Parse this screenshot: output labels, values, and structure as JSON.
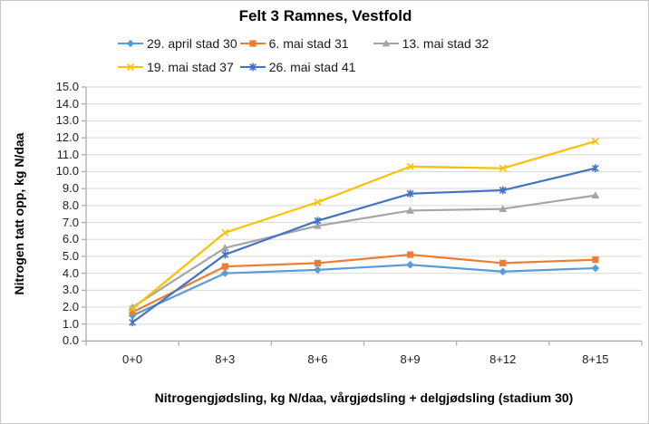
{
  "chart_data": {
    "type": "line",
    "title": "Felt 3 Ramnes, Vestfold",
    "categories": [
      "0+0",
      "8+3",
      "8+6",
      "8+9",
      "8+12",
      "8+15"
    ],
    "series": [
      {
        "name": "29. april stad 30",
        "color": "#5B9BD5",
        "marker": "diamond",
        "values": [
          1.5,
          4.0,
          4.2,
          4.5,
          4.1,
          4.3
        ]
      },
      {
        "name": "6. mai stad 31",
        "color": "#ED7D31",
        "marker": "square",
        "values": [
          1.7,
          4.4,
          4.6,
          5.1,
          4.6,
          4.8
        ]
      },
      {
        "name": "13. mai stad 32",
        "color": "#A5A5A5",
        "marker": "triangle",
        "values": [
          2.0,
          5.5,
          6.8,
          7.7,
          7.8,
          8.6
        ]
      },
      {
        "name": "19. mai stad 37",
        "color": "#FFC000",
        "marker": "x",
        "values": [
          1.9,
          6.4,
          8.2,
          10.3,
          10.2,
          11.8
        ]
      },
      {
        "name": "26. mai stad 41",
        "color": "#4472C4",
        "marker": "asterisk",
        "values": [
          1.1,
          5.1,
          7.1,
          8.7,
          8.9,
          10.2
        ]
      }
    ],
    "xlabel": "Nitrogengjødsling, kg N/daa, vårgjødsling + delgjødsling (stadium 30)",
    "ylabel": "Nitrogen tatt opp, kg N/daa",
    "ylim": [
      0,
      15
    ],
    "ytick_step": 1.0,
    "yticks": [
      "15.0",
      "14.0",
      "13.0",
      "12.0",
      "11.0",
      "10.0",
      "9.0",
      "8.0",
      "7.0",
      "6.0",
      "5.0",
      "4.0",
      "3.0",
      "2.0",
      "1.0",
      "0.0"
    ],
    "grid": "horizontal",
    "legend_position": "top",
    "legend_rows": [
      [
        0,
        1,
        2
      ],
      [
        3,
        4
      ]
    ],
    "colors": {
      "gridline": "#D9D9D9",
      "axis": "#A6A6A6",
      "tick_text": "#1F1F1F",
      "title_text": "#000000",
      "background": "#FFFFFF",
      "frame_border": "#C6C6C6"
    }
  }
}
